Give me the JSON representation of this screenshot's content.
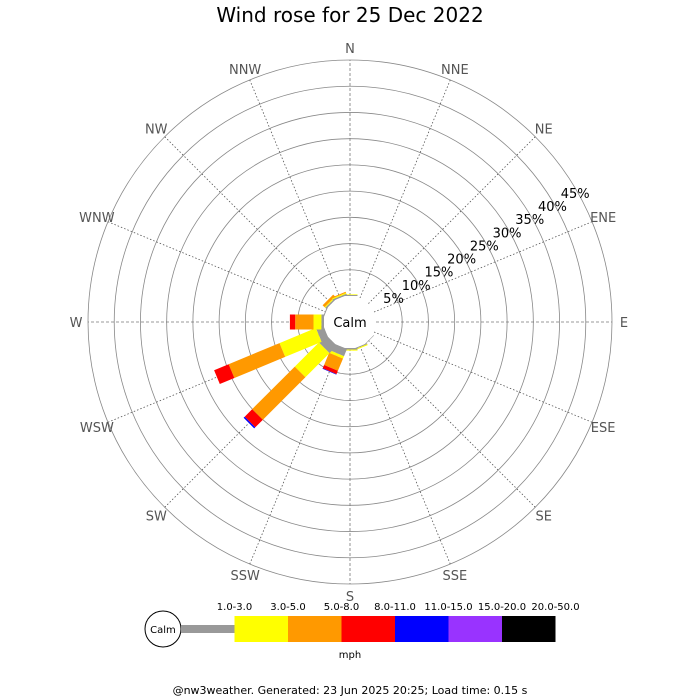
{
  "footer": "@nw3weather. Generated: 23 Jun 2025 20:25; Load time: 0.15 s",
  "chart_data": {
    "type": "wind-rose",
    "title": "Wind rose for 25 Dec 2022",
    "calm_label": "Calm",
    "unit": "mph",
    "radial_ticks": [
      "5%",
      "10%",
      "15%",
      "20%",
      "25%",
      "30%",
      "35%",
      "40%",
      "45%"
    ],
    "radial_max": 45,
    "directions": [
      "N",
      "NNE",
      "NE",
      "ENE",
      "E",
      "ESE",
      "SE",
      "SSE",
      "S",
      "SSW",
      "SW",
      "WSW",
      "W",
      "WNW",
      "NW",
      "NNW"
    ],
    "speed_bins": [
      {
        "label": "1.0-3.0",
        "color": "#999999"
      },
      {
        "label": "3.0-5.0",
        "color": "#ffff00"
      },
      {
        "label": "5.0-8.0",
        "color": "#ff9900"
      },
      {
        "label": "8.0-11.0",
        "color": "#ff0000"
      },
      {
        "label": "11.0-15.0",
        "color": "#0000ff"
      },
      {
        "label": "15.0-20.0",
        "color": "#9933ff"
      },
      {
        "label": "20.0-50.0",
        "color": "#000000"
      }
    ],
    "series": [
      {
        "name": "1.0-3.0",
        "values": [
          0.2,
          0,
          0,
          0,
          0,
          0,
          0.1,
          0.2,
          0.3,
          1.5,
          2.0,
          1.5,
          0.5,
          0.2,
          0.3,
          0.3
        ]
      },
      {
        "name": "3.0-5.0",
        "values": [
          0.1,
          0,
          0,
          0,
          0,
          0,
          0,
          0.2,
          0.2,
          0.5,
          6.5,
          7.5,
          1.5,
          0,
          0.2,
          0.2
        ]
      },
      {
        "name": "5.0-8.0",
        "values": [
          0,
          0,
          0,
          0,
          0,
          0,
          0,
          0,
          0,
          2.5,
          11.5,
          10.5,
          3.5,
          0,
          0.5,
          0.2
        ]
      },
      {
        "name": "8.0-11.0",
        "values": [
          0,
          0,
          0,
          0,
          0,
          0,
          0,
          0,
          0,
          0.7,
          2.0,
          3.0,
          1.0,
          0,
          0,
          0
        ]
      },
      {
        "name": "11.0-15.0",
        "values": [
          0,
          0,
          0,
          0,
          0,
          0,
          0,
          0,
          0,
          0.1,
          0.3,
          0,
          0,
          0,
          0,
          0
        ]
      },
      {
        "name": "15.0-20.0",
        "values": [
          0,
          0,
          0,
          0,
          0,
          0,
          0,
          0,
          0,
          0,
          0,
          0,
          0,
          0,
          0,
          0
        ]
      },
      {
        "name": "20.0-50.0",
        "values": [
          0,
          0,
          0,
          0,
          0,
          0,
          0,
          0,
          0,
          0,
          0,
          0,
          0,
          0,
          0,
          0
        ]
      }
    ]
  }
}
